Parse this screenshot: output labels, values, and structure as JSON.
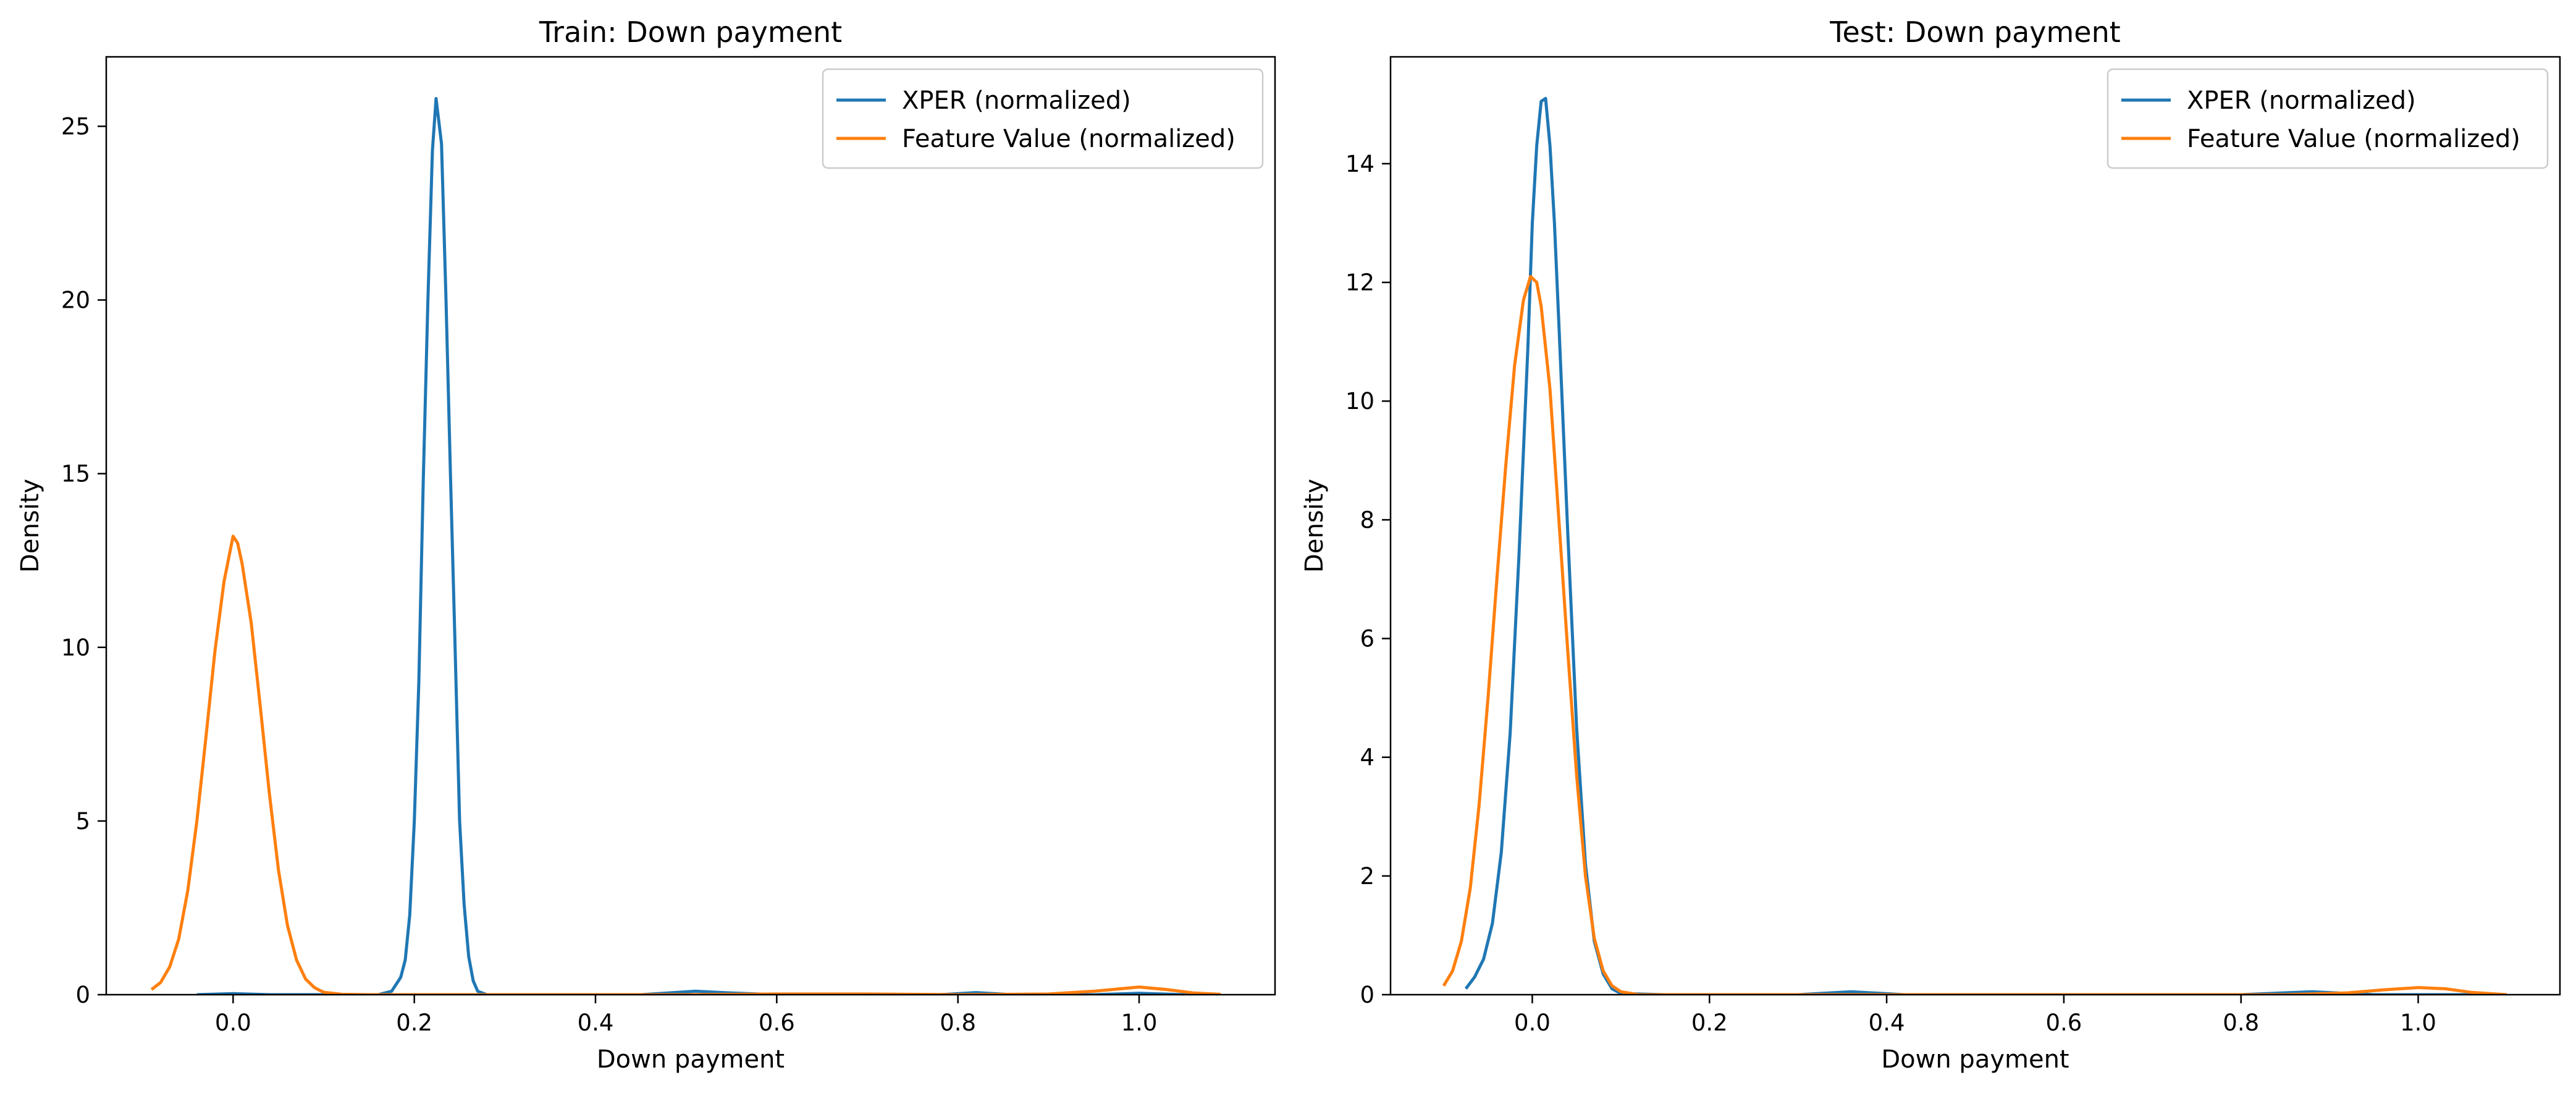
{
  "chart_data": [
    {
      "type": "line",
      "title": "Train: Down payment",
      "xlabel": "Down payment",
      "ylabel": "Density",
      "xlim": [
        -0.14,
        1.15
      ],
      "ylim": [
        0,
        27
      ],
      "xticks": [
        0.0,
        0.2,
        0.4,
        0.6,
        0.8,
        1.0
      ],
      "xtick_labels": [
        "0.0",
        "0.2",
        "0.4",
        "0.6",
        "0.8",
        "1.0"
      ],
      "yticks": [
        0,
        5,
        10,
        15,
        20,
        25
      ],
      "ytick_labels": [
        "0",
        "5",
        "10",
        "15",
        "20",
        "25"
      ],
      "grid": false,
      "legend_position": "top-right",
      "series": [
        {
          "name": "XPER (normalized)",
          "color": "#1f77b4",
          "points": [
            [
              -0.04,
              0.0
            ],
            [
              0.0,
              0.03
            ],
            [
              0.04,
              0.0
            ],
            [
              0.1,
              0.0
            ],
            [
              0.16,
              0.0
            ],
            [
              0.175,
              0.1
            ],
            [
              0.185,
              0.5
            ],
            [
              0.19,
              1.0
            ],
            [
              0.195,
              2.3
            ],
            [
              0.2,
              5.0
            ],
            [
              0.205,
              9.0
            ],
            [
              0.21,
              14.9
            ],
            [
              0.215,
              20.0
            ],
            [
              0.22,
              24.3
            ],
            [
              0.224,
              25.8
            ],
            [
              0.23,
              24.5
            ],
            [
              0.235,
              20.0
            ],
            [
              0.24,
              14.9
            ],
            [
              0.245,
              10.0
            ],
            [
              0.25,
              5.0
            ],
            [
              0.255,
              2.6
            ],
            [
              0.26,
              1.1
            ],
            [
              0.265,
              0.4
            ],
            [
              0.27,
              0.1
            ],
            [
              0.28,
              0.0
            ],
            [
              0.4,
              0.0
            ],
            [
              0.45,
              0.0
            ],
            [
              0.48,
              0.05
            ],
            [
              0.51,
              0.1
            ],
            [
              0.55,
              0.05
            ],
            [
              0.6,
              0.0
            ],
            [
              0.7,
              0.0
            ],
            [
              0.78,
              0.0
            ],
            [
              0.82,
              0.06
            ],
            [
              0.86,
              0.0
            ],
            [
              0.95,
              0.0
            ],
            [
              1.0,
              0.04
            ],
            [
              1.05,
              0.0
            ],
            [
              1.09,
              0.0
            ]
          ]
        },
        {
          "name": "Feature Value (normalized)",
          "color": "#ff7f0e",
          "points": [
            [
              -0.09,
              0.15
            ],
            [
              -0.08,
              0.35
            ],
            [
              -0.07,
              0.8
            ],
            [
              -0.06,
              1.6
            ],
            [
              -0.05,
              3.0
            ],
            [
              -0.04,
              5.0
            ],
            [
              -0.03,
              7.4
            ],
            [
              -0.02,
              9.9
            ],
            [
              -0.01,
              11.9
            ],
            [
              0.0,
              13.2
            ],
            [
              0.005,
              13.0
            ],
            [
              0.01,
              12.4
            ],
            [
              0.02,
              10.7
            ],
            [
              0.03,
              8.3
            ],
            [
              0.04,
              5.8
            ],
            [
              0.05,
              3.6
            ],
            [
              0.06,
              2.0
            ],
            [
              0.07,
              1.0
            ],
            [
              0.08,
              0.45
            ],
            [
              0.09,
              0.2
            ],
            [
              0.1,
              0.07
            ],
            [
              0.12,
              0.01
            ],
            [
              0.15,
              0.0
            ],
            [
              0.5,
              0.0
            ],
            [
              0.6,
              0.02
            ],
            [
              0.7,
              0.02
            ],
            [
              0.8,
              0.0
            ],
            [
              0.9,
              0.02
            ],
            [
              0.95,
              0.1
            ],
            [
              1.0,
              0.22
            ],
            [
              1.03,
              0.15
            ],
            [
              1.06,
              0.05
            ],
            [
              1.09,
              0.01
            ]
          ]
        }
      ]
    },
    {
      "type": "line",
      "title": "Test: Down payment",
      "xlabel": "Down payment",
      "ylabel": "Density",
      "xlim": [
        -0.16,
        1.16
      ],
      "ylim": [
        0,
        15.8
      ],
      "xticks": [
        0.0,
        0.2,
        0.4,
        0.6,
        0.8,
        1.0
      ],
      "xtick_labels": [
        "0.0",
        "0.2",
        "0.4",
        "0.6",
        "0.8",
        "1.0"
      ],
      "yticks": [
        0,
        2,
        4,
        6,
        8,
        10,
        12,
        14
      ],
      "ytick_labels": [
        "0",
        "2",
        "4",
        "6",
        "8",
        "10",
        "12",
        "14"
      ],
      "grid": false,
      "legend_position": "top-right",
      "series": [
        {
          "name": "XPER (normalized)",
          "color": "#1f77b4",
          "points": [
            [
              -0.075,
              0.1
            ],
            [
              -0.065,
              0.3
            ],
            [
              -0.055,
              0.6
            ],
            [
              -0.045,
              1.2
            ],
            [
              -0.035,
              2.4
            ],
            [
              -0.025,
              4.4
            ],
            [
              -0.015,
              7.4
            ],
            [
              -0.005,
              10.9
            ],
            [
              0.0,
              13.0
            ],
            [
              0.005,
              14.3
            ],
            [
              0.01,
              15.05
            ],
            [
              0.015,
              15.1
            ],
            [
              0.02,
              14.3
            ],
            [
              0.025,
              13.0
            ],
            [
              0.03,
              11.3
            ],
            [
              0.04,
              7.8
            ],
            [
              0.05,
              4.5
            ],
            [
              0.06,
              2.2
            ],
            [
              0.07,
              0.9
            ],
            [
              0.08,
              0.35
            ],
            [
              0.09,
              0.1
            ],
            [
              0.1,
              0.02
            ],
            [
              0.15,
              0.0
            ],
            [
              0.3,
              0.0
            ],
            [
              0.36,
              0.05
            ],
            [
              0.42,
              0.0
            ],
            [
              0.8,
              0.0
            ],
            [
              0.88,
              0.05
            ],
            [
              0.95,
              0.0
            ],
            [
              1.1,
              0.0
            ]
          ]
        },
        {
          "name": "Feature Value (normalized)",
          "color": "#ff7f0e",
          "points": [
            [
              -0.1,
              0.15
            ],
            [
              -0.09,
              0.4
            ],
            [
              -0.08,
              0.9
            ],
            [
              -0.07,
              1.8
            ],
            [
              -0.06,
              3.2
            ],
            [
              -0.05,
              5.0
            ],
            [
              -0.04,
              7.0
            ],
            [
              -0.03,
              8.9
            ],
            [
              -0.02,
              10.6
            ],
            [
              -0.01,
              11.7
            ],
            [
              -0.002,
              12.1
            ],
            [
              0.005,
              12.0
            ],
            [
              0.01,
              11.6
            ],
            [
              0.02,
              10.2
            ],
            [
              0.03,
              8.0
            ],
            [
              0.04,
              5.8
            ],
            [
              0.05,
              3.7
            ],
            [
              0.06,
              2.0
            ],
            [
              0.07,
              0.95
            ],
            [
              0.08,
              0.4
            ],
            [
              0.09,
              0.15
            ],
            [
              0.1,
              0.05
            ],
            [
              0.12,
              0.0
            ],
            [
              0.85,
              0.0
            ],
            [
              0.92,
              0.03
            ],
            [
              0.96,
              0.08
            ],
            [
              1.0,
              0.12
            ],
            [
              1.03,
              0.1
            ],
            [
              1.06,
              0.04
            ],
            [
              1.1,
              0.0
            ]
          ]
        }
      ]
    }
  ]
}
